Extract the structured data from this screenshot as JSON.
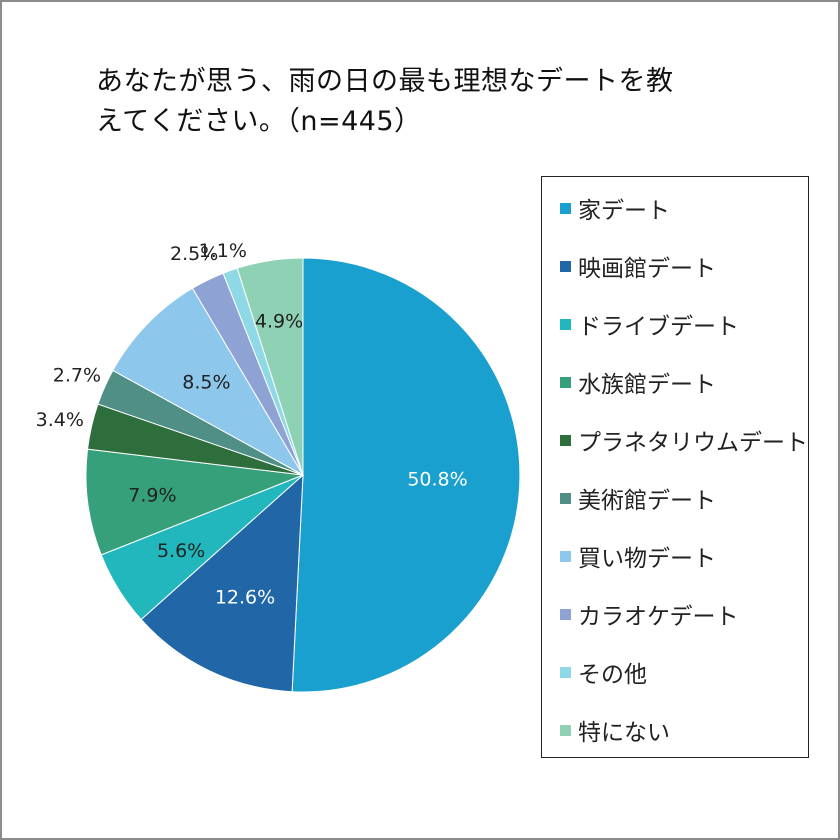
{
  "chart_data": {
    "type": "pie",
    "title": "あなたが思う、雨の日の最も理想なデートを教えてください。（n=445）",
    "title_lines": [
      "あなたが思う、雨の日の最も理想なデートを教",
      "えてください。（n=445）"
    ],
    "unit": "%",
    "legend_position": "right",
    "slices": [
      {
        "label": "家デート",
        "value": 50.8,
        "value_label": "50.8%",
        "color": "#1aa0cf",
        "label_color": "#ffffff"
      },
      {
        "label": "映画館デート",
        "value": 12.6,
        "value_label": "12.6%",
        "color": "#2167a8",
        "label_color": "#ffffff"
      },
      {
        "label": "ドライブデート",
        "value": 5.6,
        "value_label": "5.6%",
        "color": "#22b7bd",
        "label_color": "#222222"
      },
      {
        "label": "水族館デート",
        "value": 7.9,
        "value_label": "7.9%",
        "color": "#36a07a",
        "label_color": "#222222"
      },
      {
        "label": "プラネタリウムデート",
        "value": 3.4,
        "value_label": "3.4%",
        "color": "#2e6e3c",
        "label_color": "#222222"
      },
      {
        "label": "美術館デート",
        "value": 2.7,
        "value_label": "2.7%",
        "color": "#4f8f86",
        "label_color": "#222222"
      },
      {
        "label": "買い物デート",
        "value": 8.5,
        "value_label": "8.5%",
        "color": "#8ec7ec",
        "label_color": "#222222"
      },
      {
        "label": "カラオケデート",
        "value": 2.5,
        "value_label": "2.5%",
        "color": "#8ea3d4",
        "label_color": "#222222"
      },
      {
        "label": "その他",
        "value": 1.1,
        "value_label": "1.1%",
        "color": "#8fd9e6",
        "label_color": "#222222"
      },
      {
        "label": "特にない",
        "value": 4.9,
        "value_label": "4.9%",
        "color": "#8ed1b4",
        "label_color": "#222222"
      }
    ]
  }
}
